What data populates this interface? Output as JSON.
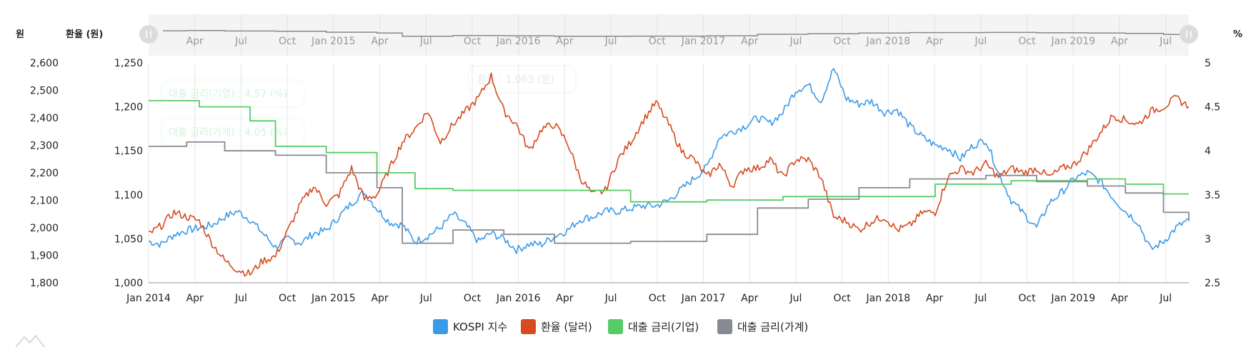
{
  "chart_data": {
    "type": "line",
    "title": "",
    "axes": {
      "left_outer": {
        "title": "원",
        "ticks": [
          "2,600",
          "2,500",
          "2,400",
          "2,300",
          "2,200",
          "2,100",
          "2,000",
          "1,900",
          "1,800"
        ],
        "ylim": [
          1800,
          2600
        ]
      },
      "left_inner": {
        "title": "환율 (원)",
        "ticks": [
          "1,250",
          "1,200",
          "1,150",
          "1,100",
          "1,050",
          "1,000"
        ],
        "ylim": [
          1000,
          1250
        ]
      },
      "right": {
        "title": "%",
        "ticks": [
          "5",
          "4.5",
          "4",
          "3.5",
          "3",
          "2.5"
        ],
        "ylim": [
          2.5,
          5
        ]
      }
    },
    "x_ticks": [
      "Jan 2014",
      "Apr",
      "Jul",
      "Oct",
      "Jan 2015",
      "Apr",
      "Jul",
      "Oct",
      "Jan 2016",
      "Apr",
      "Jul",
      "Oct",
      "Jan 2017",
      "Apr",
      "Jul",
      "Oct",
      "Jan 2018",
      "Apr",
      "Jul",
      "Oct",
      "Jan 2019",
      "Apr",
      "Jul"
    ],
    "x_range": [
      "2014-01",
      "2019-09"
    ],
    "grid": "vertical",
    "legend_position": "bottom-center",
    "series": [
      {
        "name": "KOSPI 지수",
        "color": "#3b9ae8",
        "axis": "left_outer",
        "points": [
          [
            0,
            1950
          ],
          [
            1,
            1940
          ],
          [
            2,
            1975
          ],
          [
            3,
            1990
          ],
          [
            4,
            2000
          ],
          [
            5,
            2010
          ],
          [
            6,
            2040
          ],
          [
            7,
            2060
          ],
          [
            8,
            2030
          ],
          [
            9,
            1980
          ],
          [
            10,
            1930
          ],
          [
            11,
            1960
          ],
          [
            12,
            1945
          ],
          [
            13,
            1980
          ],
          [
            14,
            1990
          ],
          [
            15,
            2040
          ],
          [
            16,
            2090
          ],
          [
            17,
            2130
          ],
          [
            18,
            2070
          ],
          [
            19,
            2020
          ],
          [
            20,
            2010
          ],
          [
            21,
            1950
          ],
          [
            22,
            1970
          ],
          [
            23,
            2000
          ],
          [
            24,
            2050
          ],
          [
            25,
            2010
          ],
          [
            26,
            1950
          ],
          [
            27,
            1980
          ],
          [
            28,
            1960
          ],
          [
            29,
            1920
          ],
          [
            30,
            1940
          ],
          [
            31,
            1940
          ],
          [
            32,
            1970
          ],
          [
            33,
            1990
          ],
          [
            34,
            2030
          ],
          [
            35,
            2040
          ],
          [
            36,
            2060
          ],
          [
            37,
            2060
          ],
          [
            38,
            2070
          ],
          [
            39,
            2080
          ],
          [
            40,
            2080
          ],
          [
            41,
            2100
          ],
          [
            42,
            2140
          ],
          [
            43,
            2180
          ],
          [
            44,
            2220
          ],
          [
            45,
            2330
          ],
          [
            46,
            2350
          ],
          [
            47,
            2370
          ],
          [
            48,
            2400
          ],
          [
            49,
            2380
          ],
          [
            50,
            2420
          ],
          [
            51,
            2500
          ],
          [
            52,
            2520
          ],
          [
            53,
            2460
          ],
          [
            54,
            2580
          ],
          [
            55,
            2470
          ],
          [
            56,
            2450
          ],
          [
            57,
            2460
          ],
          [
            58,
            2420
          ],
          [
            59,
            2430
          ],
          [
            60,
            2370
          ],
          [
            61,
            2330
          ],
          [
            62,
            2300
          ],
          [
            63,
            2290
          ],
          [
            64,
            2250
          ],
          [
            65,
            2300
          ],
          [
            66,
            2320
          ],
          [
            67,
            2200
          ],
          [
            68,
            2100
          ],
          [
            69,
            2050
          ],
          [
            70,
            2000
          ],
          [
            71,
            2090
          ],
          [
            72,
            2130
          ],
          [
            73,
            2180
          ],
          [
            74,
            2200
          ],
          [
            75,
            2170
          ],
          [
            76,
            2110
          ],
          [
            77,
            2060
          ],
          [
            78,
            2020
          ],
          [
            79,
            1920
          ],
          [
            80,
            1950
          ],
          [
            81,
            2000
          ],
          [
            82,
            2030
          ]
        ]
      },
      {
        "name": "환율 (달러)",
        "color": "#d64a1e",
        "axis": "left_inner",
        "points": [
          [
            0,
            1055
          ],
          [
            1,
            1065
          ],
          [
            2,
            1080
          ],
          [
            3,
            1075
          ],
          [
            4,
            1070
          ],
          [
            5,
            1045
          ],
          [
            6,
            1025
          ],
          [
            7,
            1015
          ],
          [
            8,
            1010
          ],
          [
            9,
            1025
          ],
          [
            10,
            1030
          ],
          [
            11,
            1060
          ],
          [
            12,
            1090
          ],
          [
            13,
            1110
          ],
          [
            14,
            1090
          ],
          [
            15,
            1100
          ],
          [
            16,
            1130
          ],
          [
            17,
            1095
          ],
          [
            18,
            1100
          ],
          [
            19,
            1130
          ],
          [
            20,
            1160
          ],
          [
            21,
            1175
          ],
          [
            22,
            1195
          ],
          [
            23,
            1160
          ],
          [
            24,
            1180
          ],
          [
            25,
            1195
          ],
          [
            26,
            1210
          ],
          [
            27,
            1235
          ],
          [
            28,
            1195
          ],
          [
            29,
            1180
          ],
          [
            30,
            1150
          ],
          [
            31,
            1175
          ],
          [
            32,
            1180
          ],
          [
            33,
            1160
          ],
          [
            34,
            1120
          ],
          [
            35,
            1100
          ],
          [
            36,
            1105
          ],
          [
            37,
            1140
          ],
          [
            38,
            1160
          ],
          [
            39,
            1185
          ],
          [
            40,
            1205
          ],
          [
            41,
            1180
          ],
          [
            42,
            1150
          ],
          [
            43,
            1140
          ],
          [
            44,
            1120
          ],
          [
            45,
            1135
          ],
          [
            46,
            1110
          ],
          [
            47,
            1130
          ],
          [
            48,
            1130
          ],
          [
            49,
            1140
          ],
          [
            50,
            1120
          ],
          [
            51,
            1140
          ],
          [
            52,
            1140
          ],
          [
            53,
            1120
          ],
          [
            54,
            1075
          ],
          [
            55,
            1070
          ],
          [
            56,
            1060
          ],
          [
            57,
            1070
          ],
          [
            58,
            1075
          ],
          [
            59,
            1060
          ],
          [
            60,
            1065
          ],
          [
            61,
            1080
          ],
          [
            62,
            1080
          ],
          [
            63,
            1120
          ],
          [
            64,
            1130
          ],
          [
            65,
            1125
          ],
          [
            66,
            1135
          ],
          [
            67,
            1120
          ],
          [
            68,
            1130
          ],
          [
            69,
            1125
          ],
          [
            70,
            1130
          ],
          [
            71,
            1120
          ],
          [
            72,
            1130
          ],
          [
            73,
            1135
          ],
          [
            74,
            1150
          ],
          [
            75,
            1170
          ],
          [
            76,
            1190
          ],
          [
            77,
            1185
          ],
          [
            78,
            1180
          ],
          [
            79,
            1195
          ],
          [
            80,
            1200
          ],
          [
            81,
            1210
          ],
          [
            82,
            1200
          ]
        ]
      },
      {
        "name": "대출 금리(기업)",
        "color": "#55cc66",
        "axis": "right",
        "points": [
          [
            0,
            4.57
          ],
          [
            4,
            4.5
          ],
          [
            8,
            4.34
          ],
          [
            10,
            4.05
          ],
          [
            14,
            3.98
          ],
          [
            18,
            3.75
          ],
          [
            21,
            3.57
          ],
          [
            24,
            3.55
          ],
          [
            30,
            3.55
          ],
          [
            38,
            3.42
          ],
          [
            44,
            3.44
          ],
          [
            50,
            3.48
          ],
          [
            56,
            3.48
          ],
          [
            62,
            3.62
          ],
          [
            68,
            3.66
          ],
          [
            74,
            3.68
          ],
          [
            77,
            3.62
          ],
          [
            80,
            3.51
          ],
          [
            82,
            3.51
          ]
        ]
      },
      {
        "name": "대출 금리(가계)",
        "color": "#888a91",
        "axis": "right",
        "points": [
          [
            0,
            4.05
          ],
          [
            3,
            4.1
          ],
          [
            6,
            4.0
          ],
          [
            10,
            3.95
          ],
          [
            14,
            3.75
          ],
          [
            18,
            3.58
          ],
          [
            20,
            2.95
          ],
          [
            24,
            3.1
          ],
          [
            28,
            3.05
          ],
          [
            32,
            2.95
          ],
          [
            38,
            2.97
          ],
          [
            44,
            3.05
          ],
          [
            48,
            3.35
          ],
          [
            52,
            3.45
          ],
          [
            56,
            3.58
          ],
          [
            60,
            3.68
          ],
          [
            66,
            3.72
          ],
          [
            70,
            3.65
          ],
          [
            74,
            3.6
          ],
          [
            77,
            3.52
          ],
          [
            80,
            3.3
          ],
          [
            82,
            3.2
          ]
        ]
      }
    ],
    "annotations": [
      "대출 금리(기업) : 4.57 (%)",
      "대출 금리(가계) : 4.05 (%)",
      "환율 : 1,063 (원)"
    ],
    "navigator": {
      "ticks": [
        "Apr",
        "Jul",
        "Oct",
        "Jan 2015",
        "Apr",
        "Jul",
        "Oct",
        "Jan 2016",
        "Apr",
        "Jul",
        "Oct",
        "Jan 2017",
        "Apr",
        "Jul",
        "Oct",
        "Jan 2018",
        "Apr",
        "Jul",
        "Oct",
        "Jan 2019",
        "Apr",
        "Jul"
      ]
    }
  },
  "colors": {
    "kospi": "#3b9ae8",
    "fx": "#d64a1e",
    "corp": "#55cc66",
    "household": "#888a91",
    "grid": "#e6e6e6",
    "navigator_bg": "#f4f4f4"
  }
}
